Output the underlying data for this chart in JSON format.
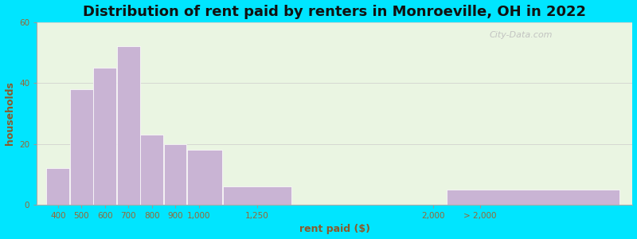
{
  "title": "Distribution of rent paid by renters in Monroeville, OH in 2022",
  "xlabel": "rent paid ($)",
  "ylabel": "households",
  "bar_color": "#c9b4d4",
  "bar_edgecolor": "#ffffff",
  "background_outer": "#00e5ff",
  "background_inner": "#eaf5e2",
  "categories": [
    "400",
    "500",
    "600",
    "700",
    "800",
    "900",
    "1,000",
    "1,250",
    "2,000",
    "> 2,000"
  ],
  "bin_lefts": [
    350,
    450,
    550,
    650,
    750,
    850,
    950,
    1100,
    1700,
    2050
  ],
  "bin_rights": [
    450,
    550,
    650,
    750,
    850,
    950,
    1100,
    1400,
    1800,
    2800
  ],
  "values": [
    12,
    38,
    45,
    52,
    23,
    20,
    18,
    6,
    0,
    5
  ],
  "xlim": [
    310,
    2850
  ],
  "ylim": [
    0,
    60
  ],
  "yticks": [
    0,
    20,
    40,
    60
  ],
  "xtick_positions": [
    400,
    500,
    600,
    700,
    800,
    900,
    1000,
    1250,
    2000,
    2200
  ],
  "xtick_labels": [
    "400",
    "500",
    "600",
    "700",
    "800",
    "900",
    "1,000",
    "1,250",
    "2,000",
    "> 2,000"
  ],
  "title_fontsize": 13,
  "axis_label_fontsize": 9,
  "tick_fontsize": 7.5,
  "watermark": "City-Data.com"
}
